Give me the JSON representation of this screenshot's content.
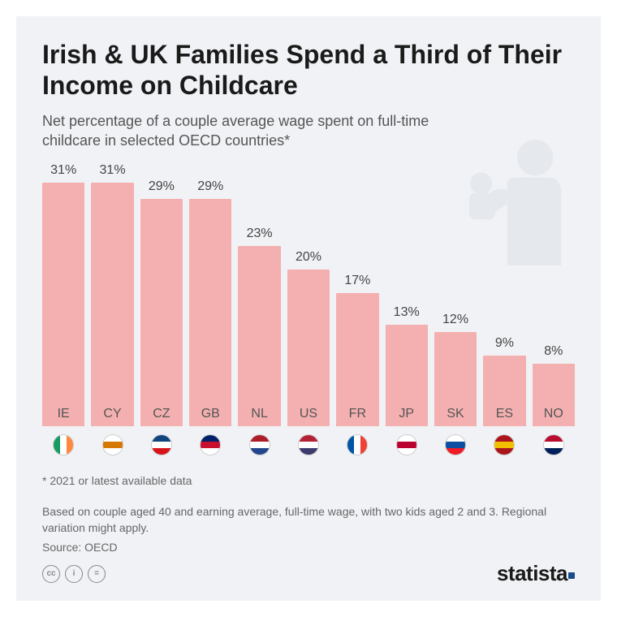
{
  "chart": {
    "type": "bar",
    "title": "Irish & UK Families Spend a Third of Their Income on Childcare",
    "subtitle": "Net percentage of a couple average wage spent on full-time childcare in selected OECD countries*",
    "bar_color": "#f4b0b0",
    "label_color": "#555555",
    "value_color": "#444444",
    "background_color": "#f0f2f5",
    "graphic_color": "#c8cdd4",
    "title_fontsize": 32,
    "subtitle_fontsize": 18,
    "value_fontsize": 16,
    "label_fontsize": 16,
    "ymax": 31,
    "data": [
      {
        "code": "IE",
        "value": 31,
        "label": "31%"
      },
      {
        "code": "CY",
        "value": 31,
        "label": "31%"
      },
      {
        "code": "CZ",
        "value": 29,
        "label": "29%"
      },
      {
        "code": "GB",
        "value": 29,
        "label": "29%"
      },
      {
        "code": "NL",
        "value": 23,
        "label": "23%"
      },
      {
        "code": "US",
        "value": 20,
        "label": "20%"
      },
      {
        "code": "FR",
        "value": 17,
        "label": "17%"
      },
      {
        "code": "JP",
        "value": 13,
        "label": "13%"
      },
      {
        "code": "SK",
        "value": 12,
        "label": "12%"
      },
      {
        "code": "ES",
        "value": 9,
        "label": "9%"
      },
      {
        "code": "NO",
        "value": 8,
        "label": "8%"
      }
    ],
    "flags": {
      "IE": [
        "#169b62",
        "#ffffff",
        "#ff883e"
      ],
      "CY": [
        "#ffffff",
        "#d57800",
        "#ffffff"
      ],
      "CZ": [
        "#11457e",
        "#ffffff",
        "#d7141a"
      ],
      "GB": [
        "#012169",
        "#c8102e",
        "#ffffff"
      ],
      "NL": [
        "#ae1c28",
        "#ffffff",
        "#21468b"
      ],
      "US": [
        "#b22234",
        "#ffffff",
        "#3c3b6e"
      ],
      "FR": [
        "#0055a4",
        "#ffffff",
        "#ef4135"
      ],
      "JP": [
        "#ffffff",
        "#bc002d",
        "#ffffff"
      ],
      "SK": [
        "#ffffff",
        "#0b4ea2",
        "#ee1c25"
      ],
      "ES": [
        "#aa151b",
        "#f1bf00",
        "#aa151b"
      ],
      "NO": [
        "#ba0c2f",
        "#ffffff",
        "#00205b"
      ]
    }
  },
  "footnote1": "* 2021 or latest available data",
  "footnote2": "Based on couple aged 40 and earning average, full-time wage, with two kids aged 2 and 3. Regional variation might apply.",
  "source": "Source: OECD",
  "brand": "statista",
  "cc_labels": [
    "cc",
    "i",
    "="
  ]
}
